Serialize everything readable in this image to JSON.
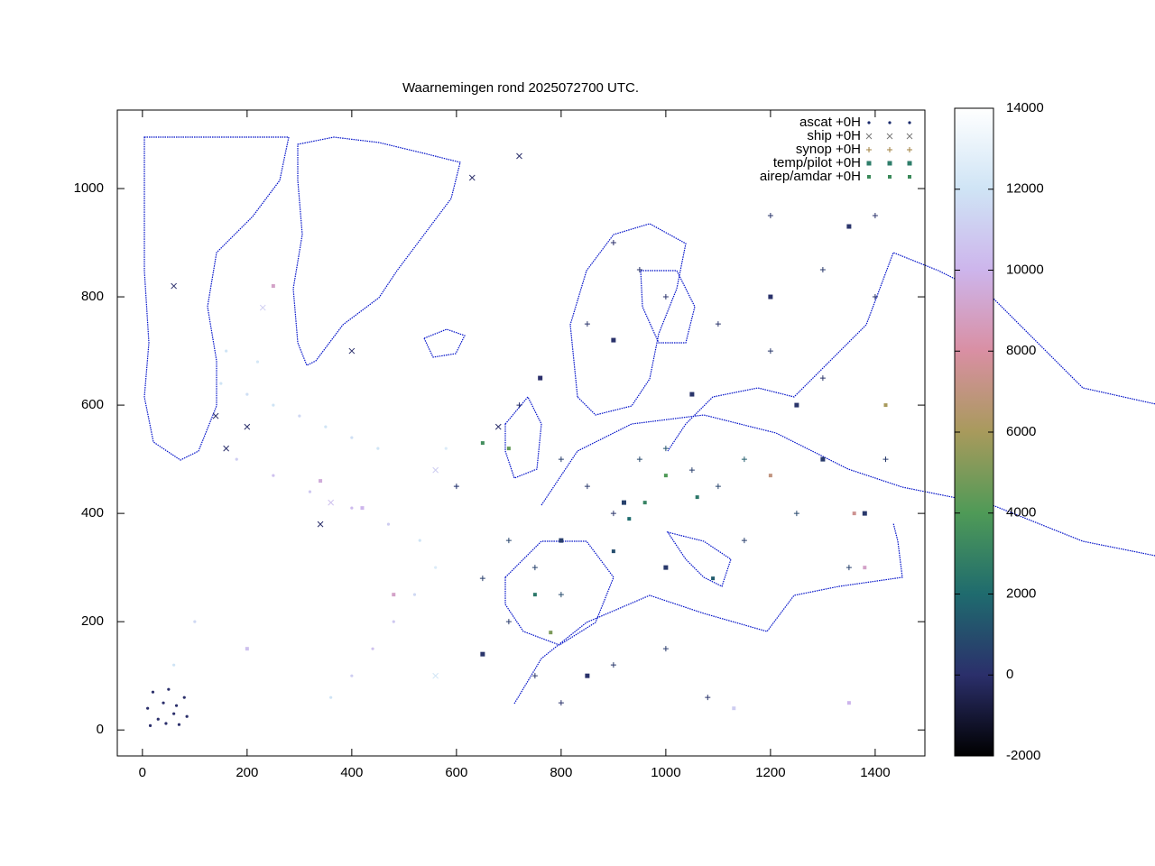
{
  "chart_data": {
    "type": "scatter",
    "title": "Waarnemingen rond 2025072700 UTC.",
    "xlim": [
      -48,
      1495
    ],
    "ylim": [
      -48,
      1145
    ],
    "xticks": [
      0,
      200,
      400,
      600,
      800,
      1000,
      1200,
      1400
    ],
    "yticks": [
      0,
      200,
      400,
      600,
      800,
      1000
    ],
    "cblim": [
      -2000,
      14000
    ],
    "cbticks": [
      -2000,
      0,
      2000,
      4000,
      6000,
      8000,
      10000,
      12000,
      14000
    ],
    "colormap": [
      {
        "value": -2000,
        "color": "#000000"
      },
      {
        "value": 0,
        "color": "#2b2f6b"
      },
      {
        "value": 2000,
        "color": "#1f6b6e"
      },
      {
        "value": 4000,
        "color": "#4f9a57"
      },
      {
        "value": 6000,
        "color": "#a89a5c"
      },
      {
        "value": 8000,
        "color": "#d98fa3"
      },
      {
        "value": 10000,
        "color": "#cdb5ec"
      },
      {
        "value": 12000,
        "color": "#cfe4f5"
      },
      {
        "value": 14000,
        "color": "#ffffff"
      }
    ],
    "legend": "upper right",
    "series": [
      {
        "name": "ascat +0H",
        "marker": "dot",
        "color": "#1a2a6c",
        "x": [
          150,
          200,
          250,
          300,
          350,
          400,
          450,
          180,
          250,
          320,
          400,
          470,
          530,
          560,
          520,
          480,
          440,
          400,
          360,
          160,
          220,
          100,
          60,
          600,
          580,
          20,
          40,
          60,
          80,
          30,
          70,
          50,
          10,
          85,
          15,
          45,
          65
        ],
        "y": [
          640,
          620,
          600,
          580,
          560,
          540,
          520,
          500,
          470,
          440,
          410,
          380,
          350,
          300,
          250,
          200,
          150,
          100,
          60,
          700,
          680,
          200,
          120,
          450,
          520,
          70,
          50,
          30,
          60,
          20,
          10,
          75,
          40,
          25,
          8,
          12,
          45
        ],
        "z": [
          12000,
          11800,
          12000,
          11500,
          12000,
          11800,
          12000,
          11000,
          10500,
          10800,
          10200,
          11000,
          12000,
          12500,
          11500,
          10800,
          10500,
          11000,
          12000,
          12000,
          12200,
          11500,
          12000,
          12000,
          12500,
          0,
          0,
          0,
          0,
          0,
          0,
          0,
          0,
          0,
          0,
          0,
          0
        ]
      },
      {
        "name": "ship +0H",
        "marker": "cross",
        "color": "#777777",
        "x": [
          160,
          200,
          340,
          400,
          560,
          630,
          720,
          560,
          60,
          230,
          360,
          680,
          140
        ],
        "y": [
          520,
          560,
          380,
          700,
          100,
          1020,
          1060,
          480,
          820,
          780,
          420,
          560,
          580
        ],
        "z": [
          0,
          0,
          0,
          0,
          12000,
          0,
          0,
          11000,
          0,
          11000,
          10500,
          0,
          0
        ]
      },
      {
        "name": "synop +0H",
        "marker": "plus",
        "color": "#a08040",
        "x": [
          900,
          950,
          1000,
          1100,
          1200,
          1300,
          1400,
          800,
          850,
          900,
          950,
          1000,
          1050,
          1100,
          1150,
          700,
          750,
          800,
          650,
          700,
          750,
          800,
          900,
          1000,
          1080,
          1250,
          1350,
          1420,
          1200,
          1300,
          720,
          850,
          1400,
          600,
          1150
        ],
        "y": [
          900,
          850,
          800,
          750,
          700,
          650,
          950,
          500,
          450,
          400,
          500,
          520,
          480,
          450,
          500,
          350,
          300,
          250,
          280,
          200,
          100,
          50,
          120,
          150,
          60,
          400,
          300,
          500,
          950,
          850,
          600,
          750,
          800,
          450,
          350
        ],
        "z": [
          0,
          200,
          100,
          150,
          300,
          200,
          100,
          500,
          300,
          200,
          800,
          1200,
          500,
          700,
          1500,
          700,
          600,
          900,
          500,
          400,
          200,
          100,
          300,
          400,
          200,
          800,
          600,
          400,
          200,
          300,
          100,
          200,
          200,
          100,
          500
        ]
      },
      {
        "name": "temp/pilot +0H",
        "marker": "square",
        "color": "#2e7d6a",
        "x": [
          760,
          900,
          1050,
          1200,
          1350,
          800,
          1000,
          850,
          1300,
          1380,
          1250,
          650,
          920
        ],
        "y": [
          650,
          720,
          620,
          800,
          930,
          350,
          300,
          100,
          500,
          400,
          600,
          140,
          420
        ],
        "z": [
          0,
          100,
          200,
          100,
          200,
          500,
          300,
          100,
          400,
          300,
          200,
          200,
          600
        ]
      },
      {
        "name": "airep/amdar +0H",
        "marker": "smallsquare",
        "color": "#3a8a5a",
        "x": [
          930,
          960,
          1000,
          1060,
          900,
          1090,
          1200,
          1360,
          1420,
          1380,
          750,
          780,
          700,
          650,
          420,
          340,
          480,
          200,
          1130,
          1350,
          250
        ],
        "y": [
          390,
          420,
          470,
          430,
          330,
          280,
          470,
          400,
          600,
          300,
          250,
          180,
          520,
          530,
          410,
          460,
          250,
          150,
          40,
          50,
          820
        ],
        "z": [
          2000,
          3000,
          4000,
          2500,
          1000,
          1500,
          7000,
          7500,
          6000,
          9000,
          2500,
          5000,
          4500,
          3500,
          10000,
          9500,
          9000,
          10500,
          11000,
          10000,
          9000
        ]
      }
    ]
  }
}
